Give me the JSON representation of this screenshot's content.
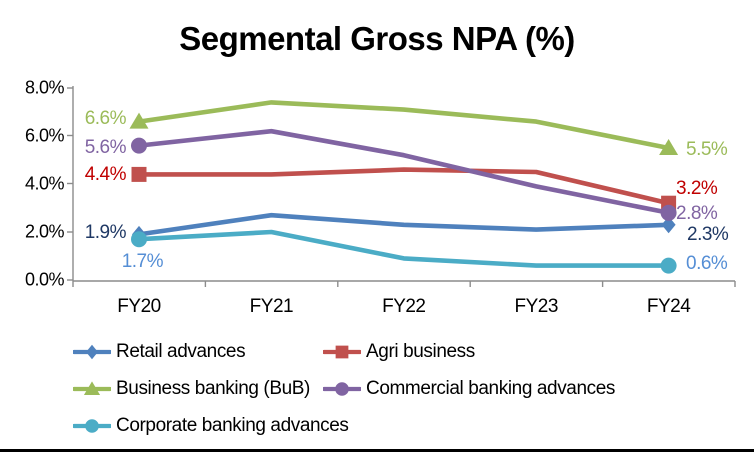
{
  "title": "Segmental Gross NPA (%)",
  "chart_data": {
    "type": "line",
    "title": "Segmental Gross NPA (%)",
    "categories": [
      "FY20",
      "FY21",
      "FY22",
      "FY23",
      "FY24"
    ],
    "y_axis": {
      "ticks": [
        "0.0%",
        "2.0%",
        "4.0%",
        "6.0%",
        "8.0%"
      ],
      "tick_values": [
        0,
        2,
        4,
        6,
        8
      ],
      "min": 0,
      "max": 8,
      "unit": "%"
    },
    "grid": false,
    "legend_position": "bottom",
    "axis_color": "#8c8c8c",
    "series": [
      {
        "name": "Retail advances",
        "marker": "diamond",
        "color": "#4F81BD",
        "label_color": "#1F3864",
        "values": [
          1.9,
          2.7,
          2.3,
          2.1,
          2.3
        ],
        "first_label": "1.9%",
        "last_label": "2.3%"
      },
      {
        "name": "Agri business",
        "marker": "square",
        "color": "#C0504D",
        "label_color": "#C00000",
        "values": [
          4.4,
          4.4,
          4.6,
          4.5,
          3.2
        ],
        "first_label": "4.4%",
        "last_label": "3.2%"
      },
      {
        "name": "Business banking (BuB)",
        "marker": "triangle",
        "color": "#9BBB59",
        "label_color": "#9BBB59",
        "values": [
          6.6,
          7.4,
          7.1,
          6.6,
          5.5
        ],
        "first_label": "6.6%",
        "last_label": "5.5%"
      },
      {
        "name": "Commercial banking advances",
        "marker": "circle",
        "color": "#8064A2",
        "label_color": "#8064A2",
        "values": [
          5.6,
          6.2,
          5.2,
          3.9,
          2.8
        ],
        "first_label": "5.6%",
        "last_label": "2.8%"
      },
      {
        "name": "Corporate banking advances",
        "marker": "circle",
        "color": "#4BACC6",
        "label_color": "#558ED5",
        "values": [
          1.7,
          2.0,
          0.9,
          0.6,
          0.6
        ],
        "first_label": "1.7%",
        "last_label": "0.6%"
      }
    ]
  }
}
